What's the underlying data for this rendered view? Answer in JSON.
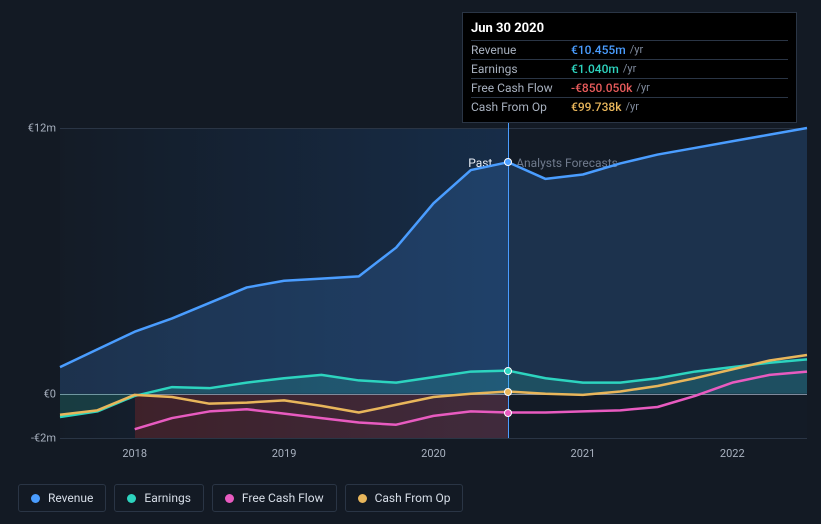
{
  "chart": {
    "type": "line",
    "background_color": "#131a24",
    "grid_color": "#2a3545",
    "zero_line_color": "#7f8a9c",
    "cursor_color": "#4a9dff",
    "currency": "€",
    "ylim": [
      -2,
      12
    ],
    "y_ticks": [
      {
        "value": 12,
        "label": "€12m"
      },
      {
        "value": 0,
        "label": "€0"
      },
      {
        "value": -2,
        "label": "-€2m"
      }
    ],
    "x_domain": [
      2017.5,
      2022.5
    ],
    "x_ticks": [
      {
        "value": 2018,
        "label": "2018"
      },
      {
        "value": 2019,
        "label": "2019"
      },
      {
        "value": 2020,
        "label": "2020"
      },
      {
        "value": 2021,
        "label": "2021"
      },
      {
        "value": 2022,
        "label": "2022"
      }
    ],
    "split_x": 2020.5,
    "past_label": "Past",
    "future_label": "Analysts Forecasts",
    "past_gradient_from": "rgba(30,50,80,0.05)",
    "past_gradient_to": "rgba(30,80,140,0.35)",
    "future_fill": "rgba(20,30,45,0.25)",
    "negative_band_color": "rgba(140,40,40,0.35)",
    "negative_band_x": [
      2018,
      2020.5
    ],
    "legend_fontsize": 12,
    "line_width": 2.5,
    "area_opacity": 0.18,
    "series": [
      {
        "id": "revenue",
        "label": "Revenue",
        "color": "#4a9dff",
        "area": true,
        "points": [
          [
            2017.5,
            1.2
          ],
          [
            2017.75,
            2.0
          ],
          [
            2018.0,
            2.8
          ],
          [
            2018.25,
            3.4
          ],
          [
            2018.5,
            4.1
          ],
          [
            2018.75,
            4.8
          ],
          [
            2019.0,
            5.1
          ],
          [
            2019.25,
            5.2
          ],
          [
            2019.5,
            5.3
          ],
          [
            2019.75,
            6.6
          ],
          [
            2020.0,
            8.6
          ],
          [
            2020.25,
            10.1
          ],
          [
            2020.5,
            10.455
          ],
          [
            2020.75,
            9.7
          ],
          [
            2021.0,
            9.9
          ],
          [
            2021.25,
            10.4
          ],
          [
            2021.5,
            10.8
          ],
          [
            2021.75,
            11.1
          ],
          [
            2022.0,
            11.4
          ],
          [
            2022.25,
            11.7
          ],
          [
            2022.5,
            12.0
          ]
        ]
      },
      {
        "id": "earnings",
        "label": "Earnings",
        "color": "#2dd4bf",
        "area": true,
        "points": [
          [
            2017.5,
            -1.05
          ],
          [
            2017.75,
            -0.8
          ],
          [
            2018.0,
            -0.1
          ],
          [
            2018.25,
            0.3
          ],
          [
            2018.5,
            0.25
          ],
          [
            2018.75,
            0.5
          ],
          [
            2019.0,
            0.7
          ],
          [
            2019.25,
            0.85
          ],
          [
            2019.5,
            0.6
          ],
          [
            2019.75,
            0.5
          ],
          [
            2020.0,
            0.75
          ],
          [
            2020.25,
            1.0
          ],
          [
            2020.5,
            1.04
          ],
          [
            2020.75,
            0.7
          ],
          [
            2021.0,
            0.5
          ],
          [
            2021.25,
            0.5
          ],
          [
            2021.5,
            0.7
          ],
          [
            2021.75,
            1.0
          ],
          [
            2022.0,
            1.2
          ],
          [
            2022.25,
            1.4
          ],
          [
            2022.5,
            1.55
          ]
        ]
      },
      {
        "id": "fcf",
        "label": "Free Cash Flow",
        "color": "#e85bc0",
        "area": false,
        "points": [
          [
            2018.0,
            -1.6
          ],
          [
            2018.25,
            -1.1
          ],
          [
            2018.5,
            -0.8
          ],
          [
            2018.75,
            -0.7
          ],
          [
            2019.0,
            -0.9
          ],
          [
            2019.25,
            -1.1
          ],
          [
            2019.5,
            -1.3
          ],
          [
            2019.75,
            -1.4
          ],
          [
            2020.0,
            -1.0
          ],
          [
            2020.25,
            -0.8
          ],
          [
            2020.5,
            -0.85
          ],
          [
            2020.75,
            -0.85
          ],
          [
            2021.0,
            -0.8
          ],
          [
            2021.25,
            -0.75
          ],
          [
            2021.5,
            -0.6
          ],
          [
            2021.75,
            -0.1
          ],
          [
            2022.0,
            0.5
          ],
          [
            2022.25,
            0.85
          ],
          [
            2022.5,
            1.0
          ]
        ]
      },
      {
        "id": "cfo",
        "label": "Cash From Op",
        "color": "#e8b65b",
        "area": false,
        "points": [
          [
            2017.5,
            -0.95
          ],
          [
            2017.75,
            -0.75
          ],
          [
            2018.0,
            -0.05
          ],
          [
            2018.25,
            -0.15
          ],
          [
            2018.5,
            -0.45
          ],
          [
            2018.75,
            -0.4
          ],
          [
            2019.0,
            -0.3
          ],
          [
            2019.25,
            -0.55
          ],
          [
            2019.5,
            -0.85
          ],
          [
            2019.75,
            -0.5
          ],
          [
            2020.0,
            -0.15
          ],
          [
            2020.25,
            0.0
          ],
          [
            2020.5,
            0.1
          ],
          [
            2020.75,
            0.0
          ],
          [
            2021.0,
            -0.05
          ],
          [
            2021.25,
            0.1
          ],
          [
            2021.5,
            0.35
          ],
          [
            2021.75,
            0.7
          ],
          [
            2022.0,
            1.1
          ],
          [
            2022.25,
            1.5
          ],
          [
            2022.5,
            1.75
          ]
        ]
      }
    ],
    "cursor_x": 2020.5,
    "markers": [
      {
        "series": "revenue",
        "x": 2020.5
      },
      {
        "series": "earnings",
        "x": 2020.5
      },
      {
        "series": "fcf",
        "x": 2020.5
      },
      {
        "series": "cfo",
        "x": 2020.5
      }
    ]
  },
  "tooltip": {
    "title": "Jun 30 2020",
    "unit": "/yr",
    "rows": [
      {
        "label": "Revenue",
        "value": "€10.455m",
        "color": "#4a9dff"
      },
      {
        "label": "Earnings",
        "value": "€1.040m",
        "color": "#2dd4bf"
      },
      {
        "label": "Free Cash Flow",
        "value": "-€850.050k",
        "color": "#e85b5b"
      },
      {
        "label": "Cash From Op",
        "value": "€99.738k",
        "color": "#e8b65b"
      }
    ]
  },
  "legend": [
    {
      "id": "revenue",
      "label": "Revenue",
      "color": "#4a9dff"
    },
    {
      "id": "earnings",
      "label": "Earnings",
      "color": "#2dd4bf"
    },
    {
      "id": "fcf",
      "label": "Free Cash Flow",
      "color": "#e85bc0"
    },
    {
      "id": "cfo",
      "label": "Cash From Op",
      "color": "#e8b65b"
    }
  ]
}
